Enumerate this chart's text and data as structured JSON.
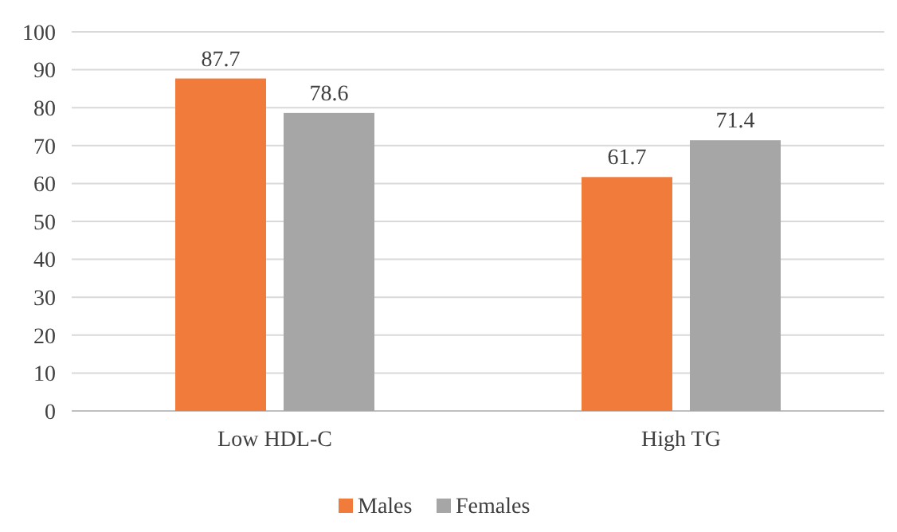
{
  "chart_data": {
    "type": "bar",
    "categories": [
      "Low HDL-C",
      "High TG"
    ],
    "series": [
      {
        "name": "Males",
        "color": "#f07b3a",
        "values": [
          87.7,
          61.7
        ]
      },
      {
        "name": "Females",
        "color": "#a6a6a6",
        "values": [
          78.6,
          71.4
        ]
      }
    ],
    "ylim": [
      0,
      100
    ],
    "yticks": [
      0,
      10,
      20,
      30,
      40,
      50,
      60,
      70,
      80,
      90,
      100
    ],
    "grid": "y",
    "legend": "bottom",
    "data_labels": true
  }
}
